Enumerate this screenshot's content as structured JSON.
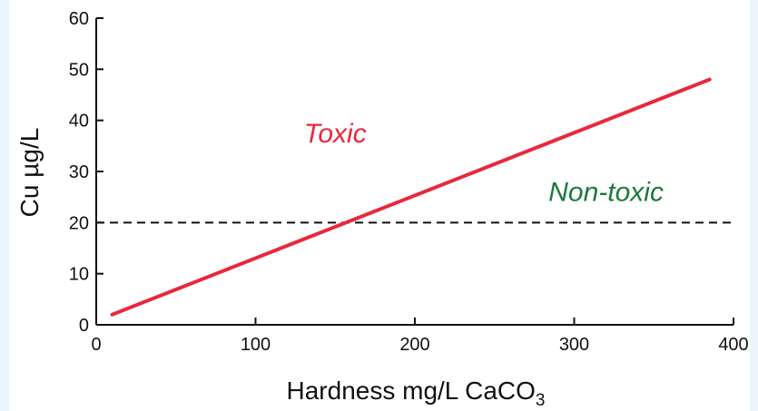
{
  "chart_data": {
    "type": "line",
    "title": "",
    "xlabel": "Hardness mg/L CaCO",
    "xlabel_subscript": "3",
    "ylabel": "Cu µg/L",
    "xlim": [
      0,
      400
    ],
    "ylim": [
      0,
      60
    ],
    "x_ticks": [
      0,
      100,
      200,
      300,
      400
    ],
    "y_ticks": [
      0,
      10,
      20,
      30,
      40,
      50,
      60
    ],
    "grid": false,
    "series": [
      {
        "x": [
          10,
          385
        ],
        "y": [
          2,
          48
        ],
        "color": "#e8283c"
      }
    ],
    "reference_line": {
      "y": 20,
      "style": "dashed",
      "color": "#111111"
    },
    "annotations": [
      {
        "text": "Toxic",
        "x": 150,
        "y": 37.5,
        "color": "#e8283c"
      },
      {
        "text": "Non-toxic",
        "x": 320,
        "y": 26,
        "color": "#1a7a3a"
      }
    ]
  }
}
